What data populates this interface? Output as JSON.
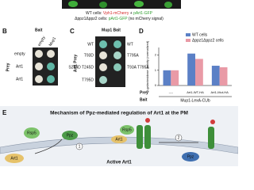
{
  "header_image": {
    "wt_line": {
      "prefix": "WT cells:",
      "mcherry": "Vph1-mCherry",
      "plus": "+",
      "gfp": "pArt1-GFP"
    },
    "mutant_line": {
      "prefix": "Δppz1Δppz2 cells:",
      "gfp": "pArt1-GFP",
      "note": "(no mCherry signal)"
    }
  },
  "panel_b": {
    "label": "B",
    "bait": "Bait",
    "columns": [
      "empty",
      "Mup1"
    ],
    "prey": "Prey",
    "rows": [
      "empty",
      "Art1",
      "Art1"
    ]
  },
  "panel_c": {
    "label": "C",
    "bait": "Mup1 Bait",
    "prey": "Art1 Prey",
    "left_rows": [
      "WT",
      "T93D",
      "S244D T245D",
      "T795D"
    ],
    "right_rows": [
      "WT",
      "T795A",
      "T93A T795A"
    ]
  },
  "chart_data": {
    "type": "bar",
    "panel_label": "D",
    "y_label": "β-galactosidase activity (normalized)",
    "categories": [
      "----",
      "Art1-WT-HA",
      "Art1-Mut-HA"
    ],
    "series": [
      {
        "name": "WT cells",
        "color": "#5b80c6",
        "values": [
          1.0,
          2.1,
          1.3
        ]
      },
      {
        "name": "Δppz1Δppz2 cells",
        "color": "#e99aa6",
        "values": [
          1.0,
          1.75,
          1.2
        ]
      }
    ],
    "ylim": [
      0,
      2.5
    ],
    "yticks": [
      0,
      1,
      2
    ],
    "legend": "top-right",
    "prey_label": "Prey",
    "bait_label": "Bait",
    "bait_value": "Mup1-LexA-CUb"
  },
  "panel_e": {
    "label": "E",
    "title": "Mechanism of Ppz-mediated regulation of Art1 at the PM",
    "rsp5_left": "Rsp5",
    "art1_left": "Art1",
    "ppz": "Ppz",
    "step1": "1",
    "active_art1": "Active Art1",
    "rsp5_mid": "Rsp5",
    "art1_mid": "Art1",
    "step2": "2",
    "nat": "Ppz"
  }
}
